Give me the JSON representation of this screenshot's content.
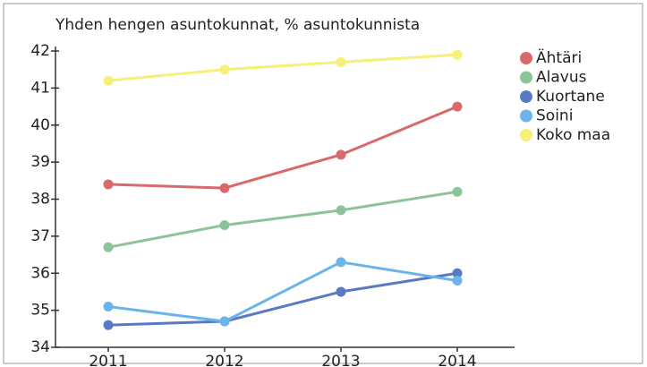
{
  "chart_data": {
    "type": "line",
    "title": "Yhden hengen asuntokunnat, % asuntokunnista",
    "categories": [
      "2011",
      "2012",
      "2013",
      "2014"
    ],
    "series": [
      {
        "name": "Ähtäri",
        "color": "#d9696b",
        "values": [
          38.4,
          38.3,
          39.2,
          40.5
        ]
      },
      {
        "name": "Alavus",
        "color": "#8cc49a",
        "values": [
          36.7,
          37.3,
          37.7,
          38.2
        ]
      },
      {
        "name": "Kuortane",
        "color": "#5a79c4",
        "values": [
          34.6,
          34.7,
          35.5,
          36.0
        ]
      },
      {
        "name": "Soini",
        "color": "#6ab4ea",
        "values": [
          35.1,
          34.7,
          36.3,
          35.8
        ]
      },
      {
        "name": "Koko maa",
        "color": "#f5f078",
        "values": [
          41.2,
          41.5,
          41.7,
          41.9
        ]
      }
    ],
    "ylim": [
      34,
      42
    ],
    "yticks": [
      34,
      35,
      36,
      37,
      38,
      39,
      40,
      41,
      42
    ],
    "legend": "right"
  }
}
